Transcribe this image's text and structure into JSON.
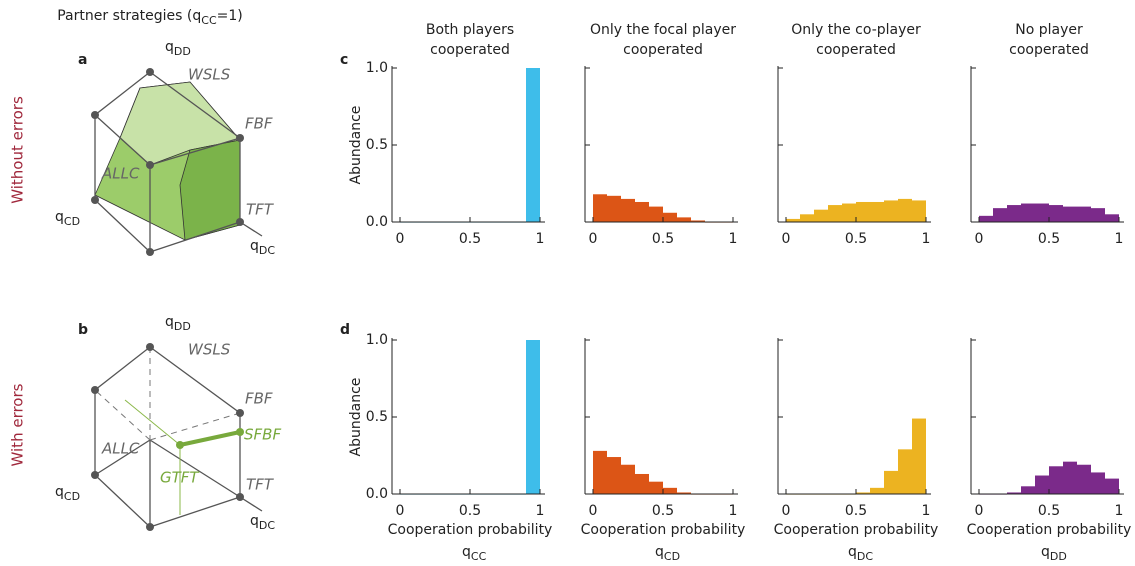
{
  "figure_title": {
    "text": "Partner strategies (q",
    "sub": "CC",
    "tail": "=1)"
  },
  "panel_letters": [
    "a",
    "b",
    "c",
    "d"
  ],
  "row_labels": [
    "Without errors",
    "With errors"
  ],
  "cubes": [
    {
      "axis_labels": [
        {
          "symbol": "q",
          "sub": "DD"
        },
        {
          "symbol": "q",
          "sub": "CD"
        },
        {
          "symbol": "q",
          "sub": "DC"
        }
      ],
      "strategies": [
        "WSLS",
        "FBF",
        "ALLC",
        "TFT"
      ]
    },
    {
      "axis_labels": [
        {
          "symbol": "q",
          "sub": "DD"
        },
        {
          "symbol": "q",
          "sub": "CD"
        },
        {
          "symbol": "q",
          "sub": "DC"
        }
      ],
      "strategies": [
        "WSLS",
        "FBF",
        "ALLC",
        "TFT",
        "SFBF",
        "GTFT"
      ]
    }
  ],
  "chart_data": [
    {
      "type": "histogram",
      "title": [
        "Both players",
        "cooperated"
      ],
      "ylabel": "Abundance",
      "color": "#3ebdea",
      "bins": [
        0,
        0.1,
        0.2,
        0.3,
        0.4,
        0.5,
        0.6,
        0.7,
        0.8,
        0.9,
        1
      ],
      "counts": [
        0,
        0,
        0,
        0,
        0,
        0,
        0,
        0,
        0,
        1.0
      ],
      "xlim": [
        0,
        1
      ],
      "ylim": [
        0,
        1
      ],
      "xticks": [
        0,
        0.5,
        1
      ],
      "yticks": [
        {
          "value": 0,
          "label": "0.0"
        },
        {
          "value": 0.5,
          "label": "0.5"
        },
        {
          "value": 1,
          "label": "1.0"
        }
      ]
    },
    {
      "type": "histogram",
      "title": [
        "Only the focal player",
        "cooperated"
      ],
      "color": "#dc5516",
      "bins": [
        0,
        0.1,
        0.2,
        0.3,
        0.4,
        0.5,
        0.6,
        0.7,
        0.8,
        0.9,
        1
      ],
      "counts": [
        0.18,
        0.17,
        0.15,
        0.13,
        0.1,
        0.06,
        0.03,
        0.01,
        0,
        0
      ],
      "xlim": [
        0,
        1
      ],
      "ylim": [
        0,
        1
      ],
      "xticks": [
        0,
        0.5,
        1
      ],
      "yticks": [
        0.5,
        1
      ]
    },
    {
      "type": "histogram",
      "title": [
        "Only the co-player",
        "cooperated"
      ],
      "color": "#ecb321",
      "bins": [
        0,
        0.1,
        0.2,
        0.3,
        0.4,
        0.5,
        0.6,
        0.7,
        0.8,
        0.9,
        1
      ],
      "counts": [
        0.02,
        0.05,
        0.08,
        0.11,
        0.12,
        0.13,
        0.13,
        0.14,
        0.15,
        0.14
      ],
      "xlim": [
        0,
        1
      ],
      "ylim": [
        0,
        1
      ],
      "xticks": [
        0,
        0.5,
        1
      ],
      "yticks": [
        0.5,
        1
      ]
    },
    {
      "type": "histogram",
      "title": [
        "No player",
        "cooperated"
      ],
      "color": "#7b2a8a",
      "bins": [
        0,
        0.1,
        0.2,
        0.3,
        0.4,
        0.5,
        0.6,
        0.7,
        0.8,
        0.9,
        1
      ],
      "counts": [
        0.04,
        0.09,
        0.11,
        0.12,
        0.12,
        0.11,
        0.1,
        0.1,
        0.09,
        0.05
      ],
      "xlim": [
        0,
        1
      ],
      "ylim": [
        0,
        1
      ],
      "xticks": [
        0,
        0.5,
        1
      ],
      "yticks": [
        0.5,
        1
      ]
    },
    {
      "type": "histogram",
      "ylabel": "Abundance",
      "xlabel": "Cooperation probability",
      "xsymbol": "q",
      "xsub": "CC",
      "color": "#3ebdea",
      "bins": [
        0,
        0.1,
        0.2,
        0.3,
        0.4,
        0.5,
        0.6,
        0.7,
        0.8,
        0.9,
        1
      ],
      "counts": [
        0,
        0,
        0,
        0,
        0,
        0,
        0,
        0,
        0,
        1.0
      ],
      "xlim": [
        0,
        1
      ],
      "ylim": [
        0,
        1
      ],
      "xticks": [
        0,
        0.5,
        1
      ],
      "yticks": [
        {
          "value": 0,
          "label": "0.0"
        },
        {
          "value": 0.5,
          "label": "0.5"
        },
        {
          "value": 1,
          "label": "1.0"
        }
      ]
    },
    {
      "type": "histogram",
      "xlabel": "Cooperation probability",
      "xsymbol": "q",
      "xsub": "CD",
      "color": "#dc5516",
      "bins": [
        0,
        0.1,
        0.2,
        0.3,
        0.4,
        0.5,
        0.6,
        0.7,
        0.8,
        0.9,
        1
      ],
      "counts": [
        0.28,
        0.24,
        0.19,
        0.13,
        0.08,
        0.04,
        0.01,
        0,
        0,
        0
      ],
      "xlim": [
        0,
        1
      ],
      "ylim": [
        0,
        1
      ],
      "xticks": [
        0,
        0.5,
        1
      ],
      "yticks": [
        0.5,
        1
      ]
    },
    {
      "type": "histogram",
      "xlabel": "Cooperation probability",
      "xsymbol": "q",
      "xsub": "DC",
      "color": "#ecb321",
      "bins": [
        0,
        0.1,
        0.2,
        0.3,
        0.4,
        0.5,
        0.6,
        0.7,
        0.8,
        0.9,
        1
      ],
      "counts": [
        0,
        0,
        0,
        0,
        0,
        0.01,
        0.04,
        0.15,
        0.29,
        0.49
      ],
      "xlim": [
        0,
        1
      ],
      "ylim": [
        0,
        1
      ],
      "xticks": [
        0,
        0.5,
        1
      ],
      "yticks": [
        0.5,
        1
      ]
    },
    {
      "type": "histogram",
      "xlabel": "Cooperation probability",
      "xsymbol": "q",
      "xsub": "DD",
      "color": "#7b2a8a",
      "bins": [
        0,
        0.1,
        0.2,
        0.3,
        0.4,
        0.5,
        0.6,
        0.7,
        0.8,
        0.9,
        1
      ],
      "counts": [
        0,
        0,
        0.01,
        0.05,
        0.12,
        0.18,
        0.21,
        0.19,
        0.14,
        0.1
      ],
      "xlim": [
        0,
        1
      ],
      "ylim": [
        0,
        1
      ],
      "xticks": [
        0,
        0.5,
        1
      ],
      "yticks": [
        0.5,
        1
      ]
    }
  ]
}
